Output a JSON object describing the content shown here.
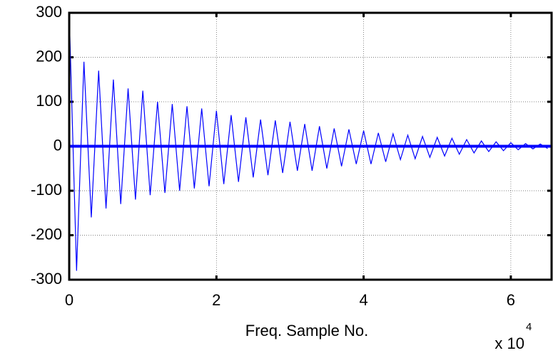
{
  "chart_data": {
    "type": "line",
    "xlabel": "Freq. Sample No.",
    "x_multiplier": {
      "base": "x 10",
      "exponent": "4"
    },
    "x": [
      0,
      0.1,
      0.2,
      0.3,
      0.4,
      0.5,
      0.6,
      0.7,
      0.8,
      0.9,
      1.0,
      1.1,
      1.2,
      1.3,
      1.4,
      1.5,
      1.6,
      1.7,
      1.8,
      1.9,
      2.0,
      2.1,
      2.2,
      2.3,
      2.4,
      2.5,
      2.6,
      2.7,
      2.8,
      2.9,
      3.0,
      3.1,
      3.2,
      3.3,
      3.4,
      3.5,
      3.6,
      3.7,
      3.8,
      3.9,
      4.0,
      4.1,
      4.2,
      4.3,
      4.4,
      4.5,
      4.6,
      4.7,
      4.8,
      4.9,
      5.0,
      5.1,
      5.2,
      5.3,
      5.4,
      5.5,
      5.6,
      5.7,
      5.8,
      5.9,
      6.0,
      6.1,
      6.2,
      6.3,
      6.4,
      6.5
    ],
    "series": [
      {
        "color": "#0000ff",
        "values": [
          300,
          -280,
          190,
          -160,
          170,
          -140,
          150,
          -130,
          130,
          -120,
          125,
          -110,
          100,
          -105,
          95,
          -100,
          90,
          -95,
          85,
          -90,
          80,
          -85,
          70,
          -80,
          65,
          -70,
          60,
          -65,
          58,
          -60,
          55,
          -55,
          50,
          -55,
          45,
          -50,
          40,
          -45,
          38,
          -40,
          35,
          -40,
          30,
          -35,
          28,
          -30,
          25,
          -28,
          22,
          -25,
          20,
          -22,
          18,
          -18,
          15,
          -15,
          12,
          -12,
          10,
          -10,
          8,
          -8,
          6,
          -6,
          5,
          -5
        ]
      }
    ],
    "xlim": [
      0,
      6.5536
    ],
    "ylim": [
      -300,
      300
    ],
    "xticks": [
      0,
      2,
      4,
      6
    ],
    "yticks": [
      300,
      200,
      100,
      0,
      -100,
      -200,
      -300
    ],
    "grid": true
  }
}
